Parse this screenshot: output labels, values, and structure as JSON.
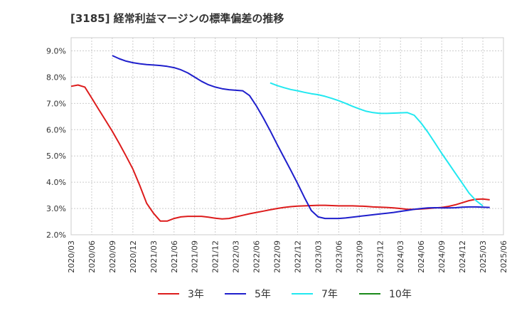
{
  "chart_data": {
    "type": "line",
    "title": "[3185]  経常利益マージンの標準偏差の推移",
    "xlabel": "",
    "ylabel": "",
    "ylim": [
      2.0,
      9.5
    ],
    "yticks": [
      2.0,
      3.0,
      4.0,
      5.0,
      6.0,
      7.0,
      8.0,
      9.0
    ],
    "ytick_labels": [
      "2.0%",
      "3.0%",
      "4.0%",
      "5.0%",
      "6.0%",
      "7.0%",
      "8.0%",
      "9.0%"
    ],
    "xticks": [
      "2020/03",
      "2020/06",
      "2020/09",
      "2020/12",
      "2021/03",
      "2021/06",
      "2021/09",
      "2021/12",
      "2022/03",
      "2022/06",
      "2022/09",
      "2022/12",
      "2023/03",
      "2023/06",
      "2023/09",
      "2023/12",
      "2024/03",
      "2024/06",
      "2024/09",
      "2024/12",
      "2025/03",
      "2025/06"
    ],
    "grid": true,
    "legend_position": "bottom",
    "series": [
      {
        "name": "3年",
        "color": "#dd1c1c",
        "points": [
          [
            "2020/03",
            7.65
          ],
          [
            "2020/04",
            7.7
          ],
          [
            "2020/05",
            7.62
          ],
          [
            "2020/06",
            7.2
          ],
          [
            "2020/07",
            6.78
          ],
          [
            "2020/08",
            6.36
          ],
          [
            "2020/09",
            5.94
          ],
          [
            "2020/10",
            5.48
          ],
          [
            "2020/11",
            5.0
          ],
          [
            "2020/12",
            4.5
          ],
          [
            "2021/01",
            3.88
          ],
          [
            "2021/02",
            3.2
          ],
          [
            "2021/03",
            2.82
          ],
          [
            "2021/04",
            2.52
          ],
          [
            "2021/05",
            2.52
          ],
          [
            "2021/06",
            2.62
          ],
          [
            "2021/07",
            2.68
          ],
          [
            "2021/08",
            2.7
          ],
          [
            "2021/09",
            2.7
          ],
          [
            "2021/10",
            2.7
          ],
          [
            "2021/11",
            2.67
          ],
          [
            "2021/12",
            2.63
          ],
          [
            "2022/01",
            2.6
          ],
          [
            "2022/02",
            2.62
          ],
          [
            "2022/03",
            2.68
          ],
          [
            "2022/04",
            2.74
          ],
          [
            "2022/05",
            2.8
          ],
          [
            "2022/06",
            2.85
          ],
          [
            "2022/07",
            2.9
          ],
          [
            "2022/08",
            2.95
          ],
          [
            "2022/09",
            3.0
          ],
          [
            "2022/10",
            3.04
          ],
          [
            "2022/11",
            3.07
          ],
          [
            "2022/12",
            3.09
          ],
          [
            "2023/01",
            3.1
          ],
          [
            "2023/02",
            3.11
          ],
          [
            "2023/03",
            3.12
          ],
          [
            "2023/04",
            3.12
          ],
          [
            "2023/05",
            3.11
          ],
          [
            "2023/06",
            3.1
          ],
          [
            "2023/07",
            3.1
          ],
          [
            "2023/08",
            3.1
          ],
          [
            "2023/09",
            3.09
          ],
          [
            "2023/10",
            3.08
          ],
          [
            "2023/11",
            3.06
          ],
          [
            "2023/12",
            3.05
          ],
          [
            "2024/01",
            3.04
          ],
          [
            "2024/02",
            3.02
          ],
          [
            "2024/03",
            3.0
          ],
          [
            "2024/04",
            2.97
          ],
          [
            "2024/05",
            2.97
          ],
          [
            "2024/06",
            2.98
          ],
          [
            "2024/07",
            3.0
          ],
          [
            "2024/08",
            3.02
          ],
          [
            "2024/09",
            3.04
          ],
          [
            "2024/10",
            3.08
          ],
          [
            "2024/11",
            3.14
          ],
          [
            "2024/12",
            3.22
          ],
          [
            "2025/01",
            3.3
          ],
          [
            "2025/02",
            3.35
          ],
          [
            "2025/03",
            3.36
          ],
          [
            "2025/04",
            3.33
          ]
        ]
      },
      {
        "name": "5年",
        "color": "#1f1fcc",
        "points": [
          [
            "2020/09",
            8.82
          ],
          [
            "2020/10",
            8.7
          ],
          [
            "2020/11",
            8.61
          ],
          [
            "2020/12",
            8.55
          ],
          [
            "2021/01",
            8.51
          ],
          [
            "2021/02",
            8.48
          ],
          [
            "2021/03",
            8.46
          ],
          [
            "2021/04",
            8.44
          ],
          [
            "2021/05",
            8.41
          ],
          [
            "2021/06",
            8.36
          ],
          [
            "2021/07",
            8.28
          ],
          [
            "2021/08",
            8.16
          ],
          [
            "2021/09",
            8.0
          ],
          [
            "2021/10",
            7.84
          ],
          [
            "2021/11",
            7.71
          ],
          [
            "2021/12",
            7.62
          ],
          [
            "2022/01",
            7.56
          ],
          [
            "2022/02",
            7.52
          ],
          [
            "2022/03",
            7.5
          ],
          [
            "2022/04",
            7.48
          ],
          [
            "2022/05",
            7.3
          ],
          [
            "2022/06",
            6.9
          ],
          [
            "2022/07",
            6.45
          ],
          [
            "2022/08",
            5.96
          ],
          [
            "2022/09",
            5.45
          ],
          [
            "2022/10",
            4.95
          ],
          [
            "2022/11",
            4.46
          ],
          [
            "2022/12",
            3.95
          ],
          [
            "2023/01",
            3.42
          ],
          [
            "2023/02",
            2.92
          ],
          [
            "2023/03",
            2.68
          ],
          [
            "2023/04",
            2.62
          ],
          [
            "2023/05",
            2.62
          ],
          [
            "2023/06",
            2.62
          ],
          [
            "2023/07",
            2.64
          ],
          [
            "2023/08",
            2.67
          ],
          [
            "2023/09",
            2.7
          ],
          [
            "2023/10",
            2.73
          ],
          [
            "2023/11",
            2.76
          ],
          [
            "2023/12",
            2.79
          ],
          [
            "2024/01",
            2.82
          ],
          [
            "2024/02",
            2.85
          ],
          [
            "2024/03",
            2.89
          ],
          [
            "2024/04",
            2.93
          ],
          [
            "2024/05",
            2.97
          ],
          [
            "2024/06",
            3.0
          ],
          [
            "2024/07",
            3.02
          ],
          [
            "2024/08",
            3.03
          ],
          [
            "2024/09",
            3.02
          ],
          [
            "2024/10",
            3.02
          ],
          [
            "2024/11",
            3.03
          ],
          [
            "2024/12",
            3.05
          ],
          [
            "2025/01",
            3.06
          ],
          [
            "2025/02",
            3.06
          ],
          [
            "2025/03",
            3.05
          ],
          [
            "2025/04",
            3.04
          ]
        ]
      },
      {
        "name": "7年",
        "color": "#22e8f0",
        "points": [
          [
            "2022/08",
            7.78
          ],
          [
            "2022/09",
            7.68
          ],
          [
            "2022/10",
            7.6
          ],
          [
            "2022/11",
            7.53
          ],
          [
            "2022/12",
            7.48
          ],
          [
            "2023/01",
            7.42
          ],
          [
            "2023/02",
            7.37
          ],
          [
            "2023/03",
            7.33
          ],
          [
            "2023/04",
            7.27
          ],
          [
            "2023/05",
            7.19
          ],
          [
            "2023/06",
            7.1
          ],
          [
            "2023/07",
            7.0
          ],
          [
            "2023/08",
            6.89
          ],
          [
            "2023/09",
            6.79
          ],
          [
            "2023/10",
            6.7
          ],
          [
            "2023/11",
            6.65
          ],
          [
            "2023/12",
            6.62
          ],
          [
            "2024/01",
            6.62
          ],
          [
            "2024/02",
            6.63
          ],
          [
            "2024/03",
            6.64
          ],
          [
            "2024/04",
            6.65
          ],
          [
            "2024/05",
            6.55
          ],
          [
            "2024/06",
            6.25
          ],
          [
            "2024/07",
            5.9
          ],
          [
            "2024/08",
            5.5
          ],
          [
            "2024/09",
            5.1
          ],
          [
            "2024/10",
            4.72
          ],
          [
            "2024/11",
            4.34
          ],
          [
            "2024/12",
            3.96
          ],
          [
            "2025/01",
            3.58
          ],
          [
            "2025/02",
            3.3
          ],
          [
            "2025/03",
            3.1
          ]
        ]
      },
      {
        "name": "10年",
        "color": "#1a8a1a",
        "points": []
      }
    ]
  }
}
